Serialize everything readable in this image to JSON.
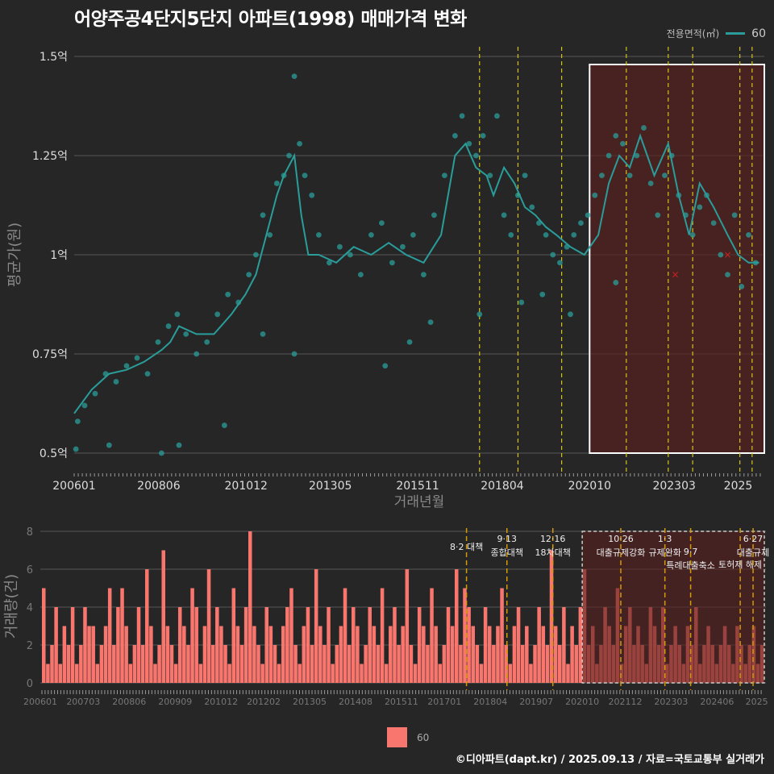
{
  "title": "어양주공4단지5단지 아파트(1998) 매매가격 변화",
  "legend_top": {
    "title": "전용면적(㎡)",
    "label": "60"
  },
  "legend_bottom": {
    "label": "60"
  },
  "footer": "©디아파트(dapt.kr) / 2025.09.13 / 자료=국토교통부 실거래가",
  "colors": {
    "background": "#262626",
    "price": "#2a9d9a",
    "volume": "#f8766d",
    "policy_line": "#d4c21a",
    "highlight": "#5a1f1f"
  },
  "chart_data": [
    {
      "type": "line",
      "xlabel": "거래년월",
      "ylabel": "평균가(원)",
      "x_ticks": [
        "200601",
        "200806",
        "201012",
        "201305",
        "201511",
        "201804",
        "202010",
        "202303",
        "2025"
      ],
      "y_ticks": [
        "0.5억",
        "0.75억",
        "1억",
        "1.25억",
        "1.5억"
      ],
      "ylim": [
        0.5,
        1.5
      ],
      "xlim": [
        2006.0,
        2025.75
      ],
      "series": [
        {
          "name": "60",
          "x": [
            2006.0,
            2006.5,
            2007.0,
            2007.5,
            2008.0,
            2008.5,
            2008.75,
            2009.0,
            2009.5,
            2010.0,
            2010.5,
            2010.9,
            2011.2,
            2011.5,
            2011.8,
            2012.0,
            2012.3,
            2012.5,
            2012.7,
            2013.0,
            2013.5,
            2014.0,
            2014.5,
            2015.0,
            2015.5,
            2016.0,
            2016.5,
            2016.9,
            2017.2,
            2017.5,
            2017.8,
            2018.0,
            2018.3,
            2018.6,
            2018.9,
            2019.2,
            2019.5,
            2019.8,
            2020.2,
            2020.6,
            2021.0,
            2021.3,
            2021.6,
            2021.9,
            2022.2,
            2022.6,
            2023.0,
            2023.3,
            2023.6,
            2023.9,
            2024.3,
            2024.7,
            2025.0,
            2025.3,
            2025.6
          ],
          "y": [
            0.6,
            0.66,
            0.7,
            0.71,
            0.73,
            0.76,
            0.78,
            0.82,
            0.8,
            0.8,
            0.85,
            0.9,
            0.95,
            1.05,
            1.15,
            1.2,
            1.25,
            1.1,
            1.0,
            1.0,
            0.98,
            1.02,
            1.0,
            1.03,
            1.0,
            0.98,
            1.05,
            1.25,
            1.28,
            1.22,
            1.2,
            1.15,
            1.22,
            1.18,
            1.12,
            1.1,
            1.07,
            1.05,
            1.02,
            1.0,
            1.05,
            1.18,
            1.25,
            1.22,
            1.3,
            1.2,
            1.28,
            1.15,
            1.05,
            1.18,
            1.12,
            1.05,
            1.0,
            0.98,
            0.98
          ]
        }
      ],
      "points": {
        "x": [
          2006.05,
          2006.3,
          2006.6,
          2006.9,
          2007.2,
          2007.5,
          2007.8,
          2008.1,
          2008.4,
          2008.7,
          2008.95,
          2009.2,
          2009.5,
          2009.8,
          2010.1,
          2010.4,
          2010.7,
          2011.0,
          2011.2,
          2011.4,
          2011.6,
          2011.8,
          2012.0,
          2012.15,
          2012.3,
          2012.45,
          2012.6,
          2012.8,
          2013.0,
          2013.3,
          2013.6,
          2013.9,
          2014.2,
          2014.5,
          2014.8,
          2015.1,
          2015.4,
          2015.7,
          2016.0,
          2016.3,
          2016.6,
          2016.9,
          2017.1,
          2017.3,
          2017.5,
          2017.7,
          2017.9,
          2018.1,
          2018.3,
          2018.5,
          2018.7,
          2018.9,
          2019.1,
          2019.3,
          2019.5,
          2019.7,
          2019.9,
          2020.1,
          2020.3,
          2020.5,
          2020.7,
          2020.9,
          2021.1,
          2021.3,
          2021.5,
          2021.7,
          2021.9,
          2022.1,
          2022.3,
          2022.5,
          2022.7,
          2022.9,
          2023.1,
          2023.3,
          2023.5,
          2023.7,
          2023.9,
          2024.1,
          2024.3,
          2024.5,
          2024.7,
          2024.9,
          2025.1,
          2025.3,
          2025.5,
          2006.1,
          2007.0,
          2008.5,
          2009.0,
          2010.3,
          2011.4,
          2012.3,
          2014.9,
          2015.6,
          2016.2,
          2017.6,
          2018.8,
          2019.4,
          2020.2,
          2021.5
        ],
        "y": [
          0.51,
          0.62,
          0.65,
          0.7,
          0.68,
          0.72,
          0.74,
          0.7,
          0.78,
          0.82,
          0.85,
          0.8,
          0.75,
          0.78,
          0.85,
          0.9,
          0.88,
          0.95,
          1.0,
          1.1,
          1.05,
          1.18,
          1.2,
          1.25,
          1.45,
          1.28,
          1.2,
          1.15,
          1.05,
          0.98,
          1.02,
          1.0,
          0.95,
          1.05,
          1.08,
          0.98,
          1.02,
          1.05,
          0.95,
          1.1,
          1.2,
          1.3,
          1.35,
          1.28,
          1.25,
          1.3,
          1.2,
          1.35,
          1.1,
          1.05,
          1.15,
          1.2,
          1.12,
          1.08,
          1.05,
          1.0,
          0.98,
          1.02,
          1.05,
          1.08,
          1.1,
          1.15,
          1.2,
          1.25,
          1.3,
          1.28,
          1.2,
          1.25,
          1.32,
          1.18,
          1.1,
          1.2,
          1.25,
          1.15,
          1.1,
          1.05,
          1.12,
          1.15,
          1.08,
          1.0,
          0.95,
          1.1,
          0.92,
          1.05,
          0.98,
          0.58,
          0.52,
          0.5,
          0.52,
          0.57,
          0.8,
          0.75,
          0.72,
          0.78,
          0.83,
          0.85,
          0.88,
          0.9,
          0.85,
          0.93
        ],
        "cancelled": [
          [
            2023.2,
            0.95
          ],
          [
            2024.7,
            1.0
          ]
        ]
      },
      "highlight_range": [
        2020.75,
        2025.75
      ],
      "policy_lines": [
        2017.6,
        2018.7,
        2019.95,
        2021.8,
        2023.0,
        2023.7,
        2025.05,
        2025.4
      ]
    },
    {
      "type": "bar",
      "ylabel": "거래량(건)",
      "ylim": [
        0,
        8
      ],
      "y_ticks": [
        "0",
        "2",
        "4",
        "6",
        "8"
      ],
      "x_ticks": [
        "200601",
        "200703",
        "200806",
        "200909",
        "201012",
        "201202",
        "201305",
        "201408",
        "201511",
        "201701",
        "201804",
        "201907",
        "202010",
        "202112",
        "202303",
        "202406",
        "2025"
      ],
      "values": [
        5,
        1,
        2,
        4,
        1,
        3,
        2,
        4,
        1,
        2,
        4,
        3,
        3,
        1,
        2,
        3,
        5,
        2,
        4,
        5,
        3,
        1,
        2,
        4,
        2,
        6,
        3,
        1,
        2,
        7,
        3,
        2,
        1,
        4,
        3,
        2,
        5,
        4,
        1,
        3,
        6,
        2,
        4,
        3,
        2,
        1,
        5,
        3,
        2,
        4,
        8,
        3,
        2,
        1,
        4,
        3,
        2,
        1,
        3,
        4,
        5,
        2,
        1,
        3,
        4,
        2,
        6,
        3,
        2,
        4,
        1,
        2,
        3,
        5,
        2,
        4,
        3,
        1,
        2,
        4,
        3,
        2,
        5,
        1,
        3,
        4,
        2,
        3,
        6,
        2,
        1,
        4,
        3,
        2,
        5,
        3,
        1,
        2,
        4,
        3,
        6,
        2,
        5,
        4,
        3,
        2,
        1,
        4,
        3,
        2,
        3,
        5,
        2,
        1,
        3,
        4,
        2,
        3,
        1,
        2,
        4,
        3,
        2,
        7,
        3,
        2,
        4,
        1,
        3,
        2,
        4,
        6,
        2,
        3,
        1,
        2,
        4,
        3,
        2,
        5,
        1,
        3,
        4,
        2,
        3,
        2,
        1,
        4,
        3,
        2,
        4,
        1,
        2,
        3,
        2,
        1,
        3,
        2,
        4,
        1,
        2,
        3,
        2,
        1,
        2,
        3,
        2,
        1,
        3,
        2,
        1,
        2,
        3,
        1,
        2
      ],
      "annotations": [
        {
          "x": 2017.6,
          "lines": [
            "8·2 대책"
          ],
          "row": 0
        },
        {
          "x": 2018.7,
          "lines": [
            "9·13",
            "종합대책"
          ],
          "row": 0
        },
        {
          "x": 2019.95,
          "lines": [
            "12·16",
            "18차대책"
          ],
          "row": 0
        },
        {
          "x": 2021.8,
          "lines": [
            "10·26",
            "대출규제강화"
          ],
          "row": 0
        },
        {
          "x": 2023.0,
          "lines": [
            "1·3",
            "규제완화"
          ],
          "row": 0
        },
        {
          "x": 2023.7,
          "lines": [
            "9·7",
            "특례대출축소"
          ],
          "row": 1
        },
        {
          "x": 2025.05,
          "lines": [
            "토허제 해제"
          ],
          "row": 1
        },
        {
          "x": 2025.4,
          "lines": [
            "6·27",
            "대출규제"
          ],
          "row": 0
        }
      ],
      "highlight_range": [
        2020.75,
        2025.75
      ]
    }
  ]
}
